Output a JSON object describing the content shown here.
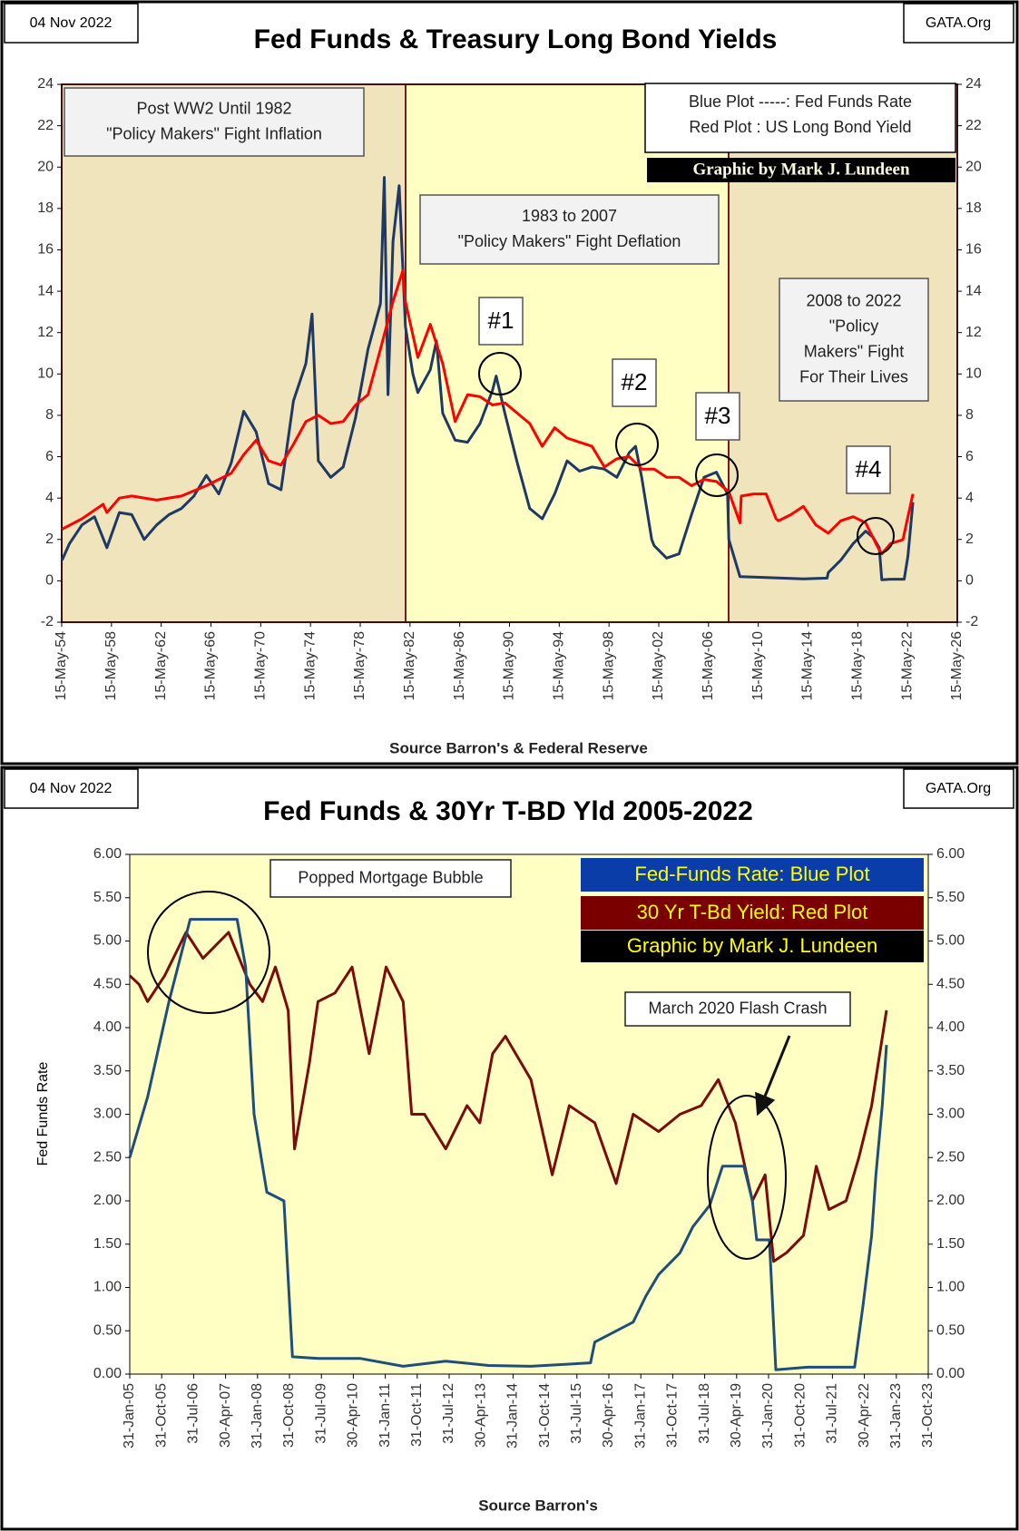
{
  "chart_data": [
    {
      "type": "line",
      "date": "04 Nov 2022",
      "site": "GATA.Org",
      "title": "Fed Funds & Treasury Long Bond Yields",
      "xlabel": "Source Barron's & Federal Reserve",
      "credit": "Graphic by Mark J. Lundeen",
      "notes": [
        {
          "lines": [
            "Post WW2 Until 1982",
            "\"Policy Makers\" Fight Inflation"
          ]
        },
        {
          "lines": [
            "1983  to 2007",
            "\"Policy Makers\" Fight Deflation"
          ]
        },
        {
          "lines": [
            "2008  to 2022",
            "\"Policy",
            "Makers\" Fight",
            "For Their Lives"
          ]
        }
      ],
      "markers": [
        "#1",
        "#2",
        "#3",
        "#4"
      ],
      "xlim": [
        1954.37,
        2026.37
      ],
      "xticks": [
        {
          "value": 1954.37,
          "label": "15-May-54"
        },
        {
          "value": 1958.37,
          "label": "15-May-58"
        },
        {
          "value": 1962.37,
          "label": "15-May-62"
        },
        {
          "value": 1966.37,
          "label": "15-May-66"
        },
        {
          "value": 1970.37,
          "label": "15-May-70"
        },
        {
          "value": 1974.37,
          "label": "15-May-74"
        },
        {
          "value": 1978.37,
          "label": "15-May-78"
        },
        {
          "value": 1982.37,
          "label": "15-May-82"
        },
        {
          "value": 1986.37,
          "label": "15-May-86"
        },
        {
          "value": 1990.37,
          "label": "15-May-90"
        },
        {
          "value": 1994.37,
          "label": "15-May-94"
        },
        {
          "value": 1998.37,
          "label": "15-May-98"
        },
        {
          "value": 2002.37,
          "label": "15-May-02"
        },
        {
          "value": 2006.37,
          "label": "15-May-06"
        },
        {
          "value": 2010.37,
          "label": "15-May-10"
        },
        {
          "value": 2014.37,
          "label": "15-May-14"
        },
        {
          "value": 2018.37,
          "label": "15-May-18"
        },
        {
          "value": 2022.37,
          "label": "15-May-22"
        },
        {
          "value": 2026.37,
          "label": "15-May-26"
        }
      ],
      "ylim": [
        -2,
        24
      ],
      "yticks": [
        -2,
        0,
        2,
        4,
        6,
        8,
        10,
        12,
        14,
        16,
        18,
        20,
        22,
        24
      ],
      "y2lim": [
        -2,
        24
      ],
      "y2ticks": [
        -2,
        0,
        2,
        4,
        6,
        8,
        10,
        12,
        14,
        16,
        18,
        20,
        22,
        24
      ],
      "grid": false,
      "series": [
        {
          "name": "Blue Plot -----: Fed Funds Rate",
          "color": "#1f3864",
          "x": [
            1954.4,
            1955,
            1956,
            1957,
            1958,
            1959,
            1960,
            1961,
            1962,
            1963,
            1964,
            1965,
            1966,
            1967,
            1968,
            1969,
            1970,
            1971,
            1972,
            1973,
            1974,
            1974.5,
            1975,
            1976,
            1977,
            1978,
            1979,
            1980,
            1980.3,
            1980.6,
            1981,
            1981.5,
            1982,
            1982.6,
            1983,
            1984,
            1984.5,
            1985,
            1986,
            1987,
            1988,
            1989,
            1989.3,
            1990,
            1991,
            1992,
            1993,
            1994,
            1995,
            1996,
            1997,
            1998,
            1999,
            2000,
            2000.5,
            2001,
            2001.8,
            2002,
            2003,
            2004,
            2005,
            2006,
            2007,
            2007.9,
            2008,
            2008.9,
            2010,
            2012,
            2014,
            2015.9,
            2016,
            2017,
            2018,
            2019,
            2019.6,
            2020.1,
            2020.3,
            2021,
            2022.1,
            2022.4,
            2022.8
          ],
          "values": [
            1.0,
            1.8,
            2.7,
            3.1,
            1.6,
            3.3,
            3.2,
            2.0,
            2.7,
            3.2,
            3.5,
            4.1,
            5.1,
            4.2,
            5.7,
            8.2,
            7.2,
            4.7,
            4.4,
            8.7,
            10.5,
            12.9,
            5.8,
            5.0,
            5.5,
            7.9,
            11.2,
            13.4,
            19.5,
            9.0,
            16.4,
            19.1,
            12.3,
            10.0,
            9.1,
            10.2,
            11.6,
            8.1,
            6.8,
            6.7,
            7.6,
            9.2,
            9.9,
            8.1,
            5.7,
            3.5,
            3.0,
            4.2,
            5.8,
            5.3,
            5.5,
            5.4,
            5.0,
            6.2,
            6.5,
            5.0,
            2.0,
            1.7,
            1.1,
            1.3,
            3.2,
            5.0,
            5.25,
            4.2,
            2.0,
            0.2,
            0.18,
            0.14,
            0.09,
            0.13,
            0.4,
            1.0,
            1.8,
            2.4,
            2.1,
            1.6,
            0.05,
            0.08,
            0.08,
            1.2,
            3.8
          ]
        },
        {
          "name": "Red Plot : US Long Bond Yield",
          "color": "#ff0000",
          "x": [
            1954.4,
            1956,
            1957.7,
            1958,
            1959,
            1960,
            1962,
            1964,
            1966,
            1967,
            1968,
            1969,
            1970,
            1971,
            1972,
            1973,
            1974,
            1975,
            1976,
            1977,
            1978,
            1979,
            1980,
            1981,
            1981.8,
            1982,
            1983,
            1984,
            1985,
            1986,
            1987,
            1988,
            1989,
            1990,
            1991,
            1992,
            1993,
            1994,
            1995,
            1996,
            1997,
            1998,
            1999,
            2000,
            2001,
            2002,
            2003,
            2004,
            2005,
            2006,
            2007,
            2008,
            2008.9,
            2009,
            2010,
            2011,
            2011.8,
            2012,
            2013,
            2014,
            2015,
            2016,
            2017,
            2018,
            2019,
            2020,
            2020.3,
            2021,
            2021.8,
            2022,
            2022.8
          ],
          "values": [
            2.5,
            3.0,
            3.7,
            3.3,
            4.0,
            4.1,
            3.9,
            4.1,
            4.6,
            4.9,
            5.2,
            6.1,
            6.8,
            5.8,
            5.6,
            6.6,
            7.7,
            8.0,
            7.6,
            7.7,
            8.5,
            9.0,
            11.2,
            13.5,
            15.0,
            13.5,
            10.8,
            12.4,
            10.5,
            7.7,
            9.0,
            8.9,
            8.5,
            8.6,
            8.1,
            7.6,
            6.5,
            7.4,
            6.9,
            6.7,
            6.5,
            5.5,
            5.9,
            6.0,
            5.4,
            5.4,
            5.0,
            5.0,
            4.6,
            4.9,
            4.8,
            4.3,
            2.8,
            4.1,
            4.2,
            4.2,
            3.0,
            2.9,
            3.2,
            3.6,
            2.7,
            2.3,
            2.9,
            3.1,
            2.8,
            1.6,
            1.3,
            1.8,
            1.95,
            2.0,
            4.2
          ]
        }
      ]
    },
    {
      "type": "line",
      "date": "04 Nov 2022",
      "site": "GATA.Org",
      "title": "Fed Funds & 30Yr T-BD Yld 2005-2022",
      "ylabel": "Fed Funds Rate",
      "xlabel": "Source Barron's",
      "credit": "Graphic by Mark J. Lundeen",
      "notes": [
        {
          "lines": [
            "Popped Mortgage Bubble"
          ]
        },
        {
          "lines": [
            "March 2020 Flash Crash"
          ]
        }
      ],
      "xlim": [
        2005.08,
        2023.83
      ],
      "xticks": [
        {
          "value": 2005.08,
          "label": "31-Jan-05"
        },
        {
          "value": 2005.83,
          "label": "31-Oct-05"
        },
        {
          "value": 2006.58,
          "label": "31-Jul-06"
        },
        {
          "value": 2007.33,
          "label": "30-Apr-07"
        },
        {
          "value": 2008.08,
          "label": "31-Jan-08"
        },
        {
          "value": 2008.83,
          "label": "31-Oct-08"
        },
        {
          "value": 2009.58,
          "label": "31-Jul-09"
        },
        {
          "value": 2010.33,
          "label": "30-Apr-10"
        },
        {
          "value": 2011.08,
          "label": "31-Jan-11"
        },
        {
          "value": 2011.83,
          "label": "31-Oct-11"
        },
        {
          "value": 2012.58,
          "label": "31-Jul-12"
        },
        {
          "value": 2013.33,
          "label": "30-Apr-13"
        },
        {
          "value": 2014.08,
          "label": "31-Jan-14"
        },
        {
          "value": 2014.83,
          "label": "31-Oct-14"
        },
        {
          "value": 2015.58,
          "label": "31-Jul-15"
        },
        {
          "value": 2016.33,
          "label": "30-Apr-16"
        },
        {
          "value": 2017.08,
          "label": "31-Jan-17"
        },
        {
          "value": 2017.83,
          "label": "31-Oct-17"
        },
        {
          "value": 2018.58,
          "label": "31-Jul-18"
        },
        {
          "value": 2019.33,
          "label": "30-Apr-19"
        },
        {
          "value": 2020.08,
          "label": "31-Jan-20"
        },
        {
          "value": 2020.83,
          "label": "31-Oct-20"
        },
        {
          "value": 2021.58,
          "label": "31-Jul-21"
        },
        {
          "value": 2022.33,
          "label": "30-Apr-22"
        },
        {
          "value": 2023.08,
          "label": "31-Jan-23"
        },
        {
          "value": 2023.83,
          "label": "31-Oct-23"
        }
      ],
      "ylim": [
        0,
        6
      ],
      "yticks": [
        {
          "value": 0,
          "label": "0.00"
        },
        {
          "value": 0.5,
          "label": "0.50"
        },
        {
          "value": 1,
          "label": "1.00"
        },
        {
          "value": 1.5,
          "label": "1.50"
        },
        {
          "value": 2,
          "label": "2.00"
        },
        {
          "value": 2.5,
          "label": "2.50"
        },
        {
          "value": 3,
          "label": "3.00"
        },
        {
          "value": 3.5,
          "label": "3.50"
        },
        {
          "value": 4,
          "label": "4.00"
        },
        {
          "value": 4.5,
          "label": "4.50"
        },
        {
          "value": 5,
          "label": "5.00"
        },
        {
          "value": 5.5,
          "label": "5.50"
        },
        {
          "value": 6,
          "label": "6.00"
        }
      ],
      "y2lim": [
        0,
        6
      ],
      "y2ticks": [
        {
          "value": 0,
          "label": "0.00"
        },
        {
          "value": 0.5,
          "label": "0.50"
        },
        {
          "value": 1,
          "label": "1.00"
        },
        {
          "value": 1.5,
          "label": "1.50"
        },
        {
          "value": 2,
          "label": "2.00"
        },
        {
          "value": 2.5,
          "label": "2.50"
        },
        {
          "value": 3,
          "label": "3.00"
        },
        {
          "value": 3.5,
          "label": "3.50"
        },
        {
          "value": 4,
          "label": "4.00"
        },
        {
          "value": 4.5,
          "label": "4.50"
        },
        {
          "value": 5,
          "label": "5.00"
        },
        {
          "value": 5.5,
          "label": "5.50"
        },
        {
          "value": 6,
          "label": "6.00"
        }
      ],
      "grid": false,
      "series": [
        {
          "name": "Fed-Funds Rate: Blue Plot",
          "color": "#1f4e79",
          "x": [
            2005.08,
            2005.5,
            2006,
            2006.5,
            2007.6,
            2007.8,
            2008,
            2008.3,
            2008.7,
            2008.9,
            2009.5,
            2010.5,
            2011.5,
            2012.5,
            2013.5,
            2014.5,
            2015.9,
            2016,
            2016.9,
            2017.2,
            2017.5,
            2018,
            2018.3,
            2018.7,
            2019,
            2019.5,
            2019.7,
            2019.8,
            2020.1,
            2020.25,
            2021,
            2022.1,
            2022.3,
            2022.5,
            2022.6,
            2022.75,
            2022.85
          ],
          "values": [
            2.5,
            3.2,
            4.3,
            5.25,
            5.25,
            4.7,
            3.0,
            2.1,
            2.0,
            0.2,
            0.18,
            0.18,
            0.09,
            0.15,
            0.1,
            0.09,
            0.13,
            0.37,
            0.6,
            0.9,
            1.15,
            1.4,
            1.7,
            1.95,
            2.4,
            2.4,
            2.0,
            1.55,
            1.55,
            0.05,
            0.08,
            0.08,
            0.8,
            1.6,
            2.3,
            3.1,
            3.8
          ]
        },
        {
          "name": "30 Yr T-Bd Yield: Red Plot",
          "color": "#7b0c0c",
          "x": [
            2005.08,
            2005.3,
            2005.5,
            2005.9,
            2006.4,
            2006.8,
            2007.4,
            2007.9,
            2008.2,
            2008.5,
            2008.8,
            2008.95,
            2009.3,
            2009.5,
            2009.9,
            2010.3,
            2010.7,
            2010.9,
            2011.1,
            2011.5,
            2011.7,
            2012,
            2012.5,
            2013,
            2013.3,
            2013.6,
            2013.9,
            2014.5,
            2015,
            2015.4,
            2016,
            2016.5,
            2016.9,
            2017.5,
            2018,
            2018.5,
            2018.9,
            2019.3,
            2019.7,
            2020,
            2020.2,
            2020.5,
            2020.9,
            2021.2,
            2021.5,
            2021.9,
            2022.2,
            2022.5,
            2022.85
          ],
          "values": [
            4.6,
            4.5,
            4.3,
            4.6,
            5.1,
            4.8,
            5.1,
            4.5,
            4.3,
            4.7,
            4.2,
            2.6,
            3.6,
            4.3,
            4.4,
            4.7,
            3.7,
            4.2,
            4.7,
            4.3,
            3.0,
            3.0,
            2.6,
            3.1,
            2.9,
            3.7,
            3.9,
            3.4,
            2.3,
            3.1,
            2.9,
            2.2,
            3.0,
            2.8,
            3.0,
            3.1,
            3.4,
            2.9,
            2.0,
            2.3,
            1.3,
            1.4,
            1.6,
            2.4,
            1.9,
            2.0,
            2.5,
            3.1,
            4.2
          ]
        }
      ]
    }
  ]
}
